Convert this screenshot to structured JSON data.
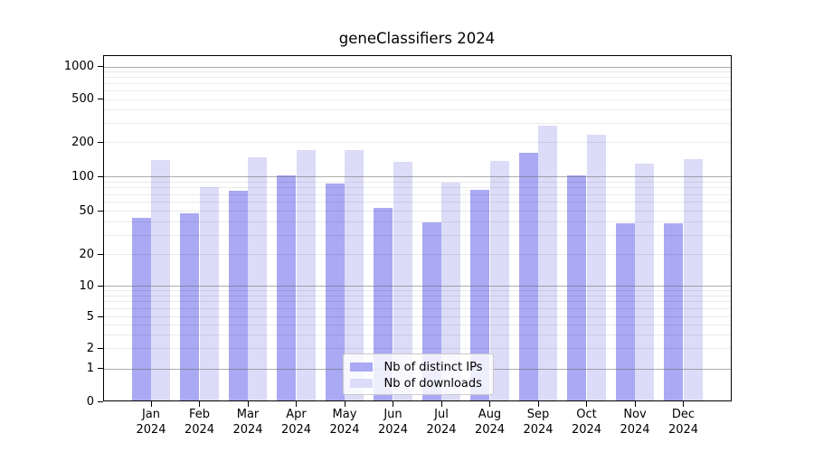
{
  "title": "geneClassifiers 2024",
  "colors": {
    "distinct_ips": "#a9a9f4",
    "downloads": "#dcdcf8",
    "major_grid": "#b0b0b0",
    "minor_grid": "#ebebeb",
    "axis": "#000000"
  },
  "legend": {
    "items": [
      {
        "label": "Nb of distinct IPs",
        "series": "distinct_ips"
      },
      {
        "label": "Nb of downloads",
        "series": "downloads"
      }
    ]
  },
  "y_axis": {
    "tick_labels": [
      "1000",
      "500",
      "200",
      "100",
      "50",
      "20",
      "10",
      "5",
      "2",
      "1",
      "0"
    ]
  },
  "x_axis": {
    "year": "2024",
    "months": [
      "Jan",
      "Feb",
      "Mar",
      "Apr",
      "May",
      "Jun",
      "Jul",
      "Aug",
      "Sep",
      "Oct",
      "Nov",
      "Dec"
    ]
  },
  "chart_data": {
    "type": "bar",
    "title": "geneClassifiers 2024",
    "categories": [
      "Jan 2024",
      "Feb 2024",
      "Mar 2024",
      "Apr 2024",
      "May 2024",
      "Jun 2024",
      "Jul 2024",
      "Aug 2024",
      "Sep 2024",
      "Oct 2024",
      "Nov 2024",
      "Dec 2024"
    ],
    "series": [
      {
        "name": "Nb of distinct IPs",
        "color": "#a9a9f4",
        "values": [
          43,
          47,
          75,
          102,
          86,
          53,
          39,
          76,
          160,
          102,
          38,
          38
        ]
      },
      {
        "name": "Nb of downloads",
        "color": "#dcdcf8",
        "values": [
          140,
          81,
          147,
          171,
          171,
          133,
          88,
          136,
          283,
          232,
          128,
          141
        ]
      }
    ],
    "yscale": "symlog",
    "yticks": [
      0,
      1,
      2,
      5,
      10,
      20,
      50,
      100,
      200,
      500,
      1000
    ],
    "ylim": [
      0,
      1200
    ],
    "grid": true,
    "legend_position": "lower center"
  }
}
